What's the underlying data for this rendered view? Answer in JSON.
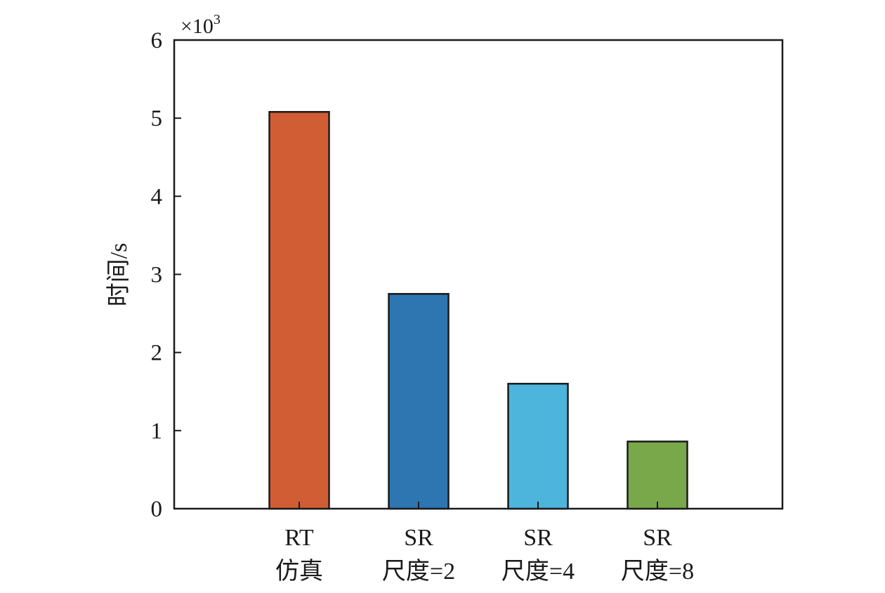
{
  "chart_data": {
    "type": "bar",
    "categories": [
      [
        "RT",
        "仿真"
      ],
      [
        "SR",
        "尺度=2"
      ],
      [
        "SR",
        "尺度=4"
      ],
      [
        "SR",
        "尺度=8"
      ]
    ],
    "values": [
      5080,
      2750,
      1600,
      860
    ],
    "colors": [
      "#d15d35",
      "#2d76b2",
      "#4db4dc",
      "#79a84b"
    ],
    "title": "",
    "xlabel": "",
    "ylabel": "时间/s",
    "ylim": [
      0,
      6000
    ],
    "yticks": [
      0,
      1,
      2,
      3,
      4,
      5,
      6
    ],
    "y_multiplier": "×10",
    "y_multiplier_exponent": "3",
    "grid": false
  }
}
